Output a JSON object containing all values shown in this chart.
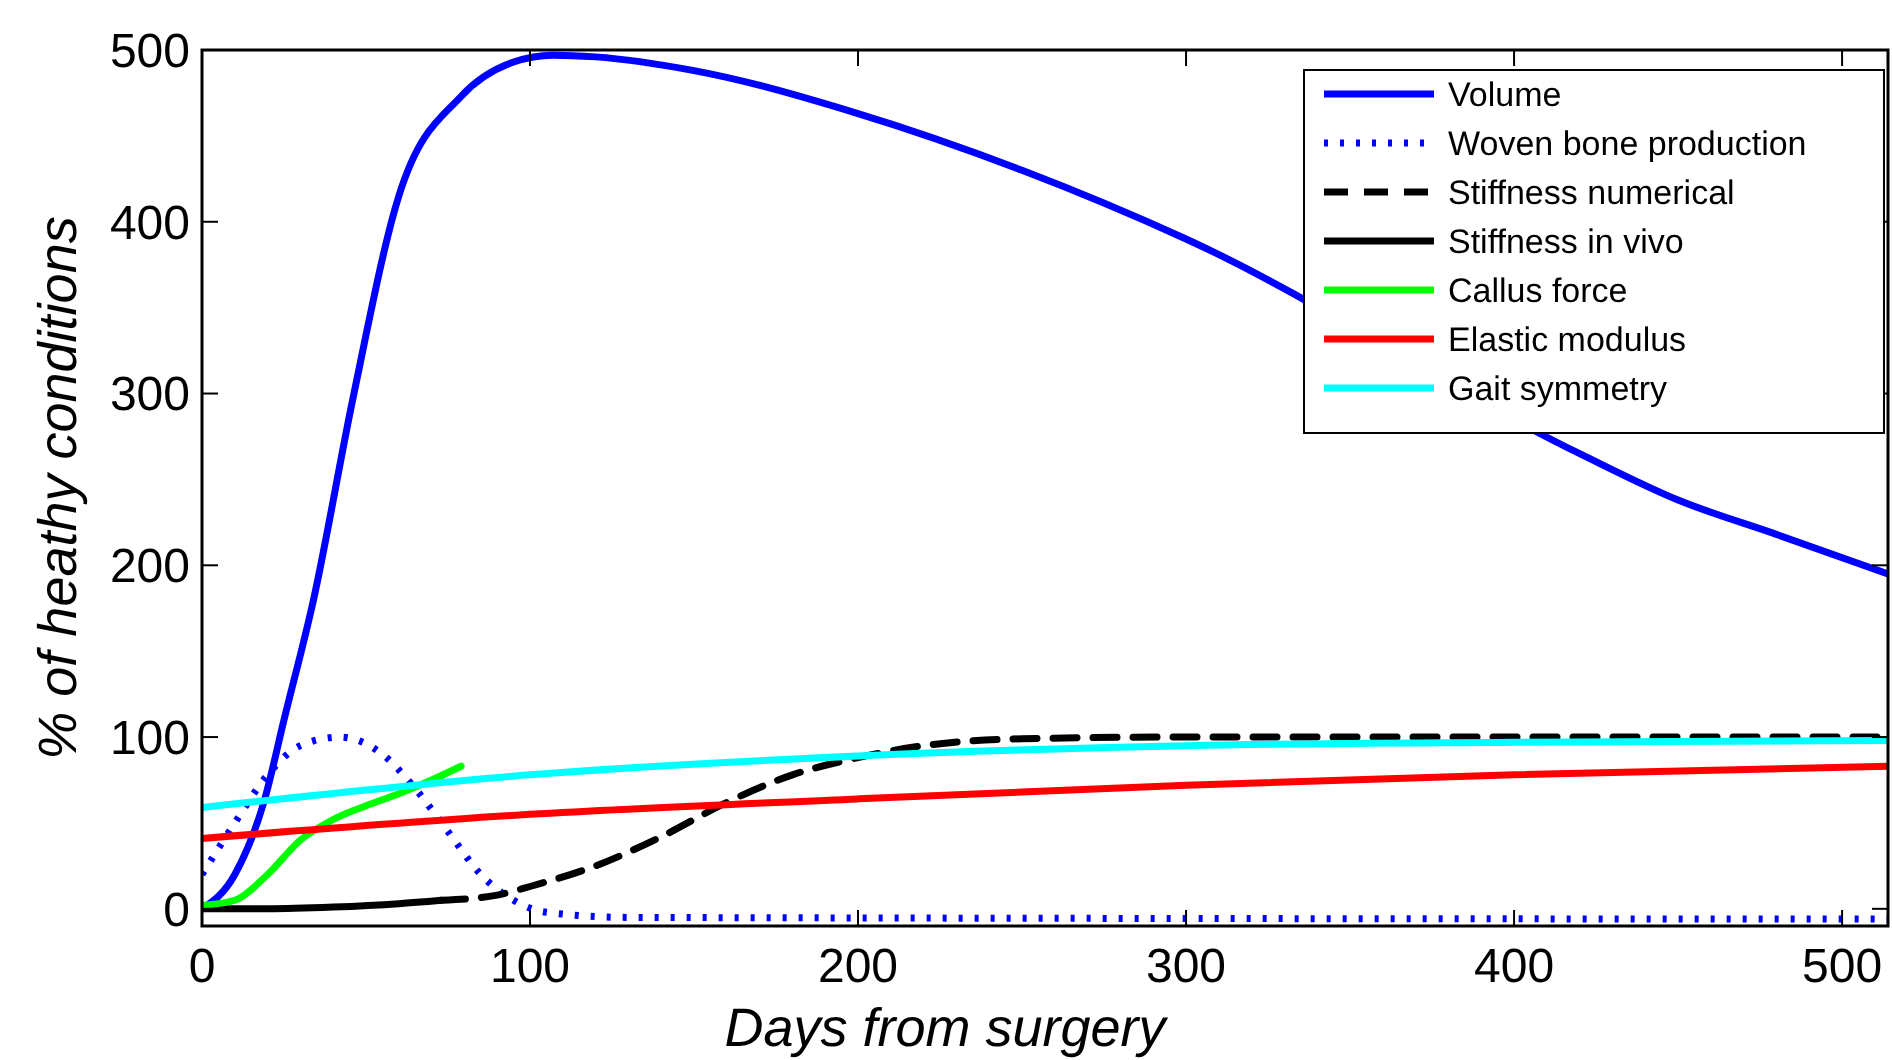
{
  "chart_data": {
    "type": "line",
    "xlabel": "Days from surgery",
    "ylabel": "% of heathy conditions",
    "xlim": [
      0,
      514
    ],
    "ylim": [
      -10,
      500
    ],
    "xticks": [
      0,
      100,
      200,
      300,
      400,
      500
    ],
    "yticks": [
      0,
      100,
      200,
      300,
      400,
      500
    ],
    "grid": false,
    "legend": "top right",
    "series": [
      {
        "name": "Volume",
        "color": "#0000ff",
        "line_style": "solid",
        "x": [
          0,
          10,
          19,
          25,
          34,
          46,
          60,
          79,
          95,
          107,
          120,
          150,
          200,
          250,
          300,
          420,
          450,
          480,
          514
        ],
        "values": [
          0,
          20,
          63,
          110,
          180,
          297,
          415,
          473,
          493,
          497,
          496,
          488,
          463,
          430,
          390,
          265,
          238,
          218,
          195
        ]
      },
      {
        "name": "Woven bone production",
        "color": "#0000ff",
        "line_style": "dotted",
        "x": [
          0,
          10,
          20,
          30,
          42,
          55,
          65,
          75,
          85,
          95,
          105,
          130,
          514
        ],
        "values": [
          20,
          50,
          78,
          95,
          100,
          90,
          70,
          45,
          20,
          5,
          -2,
          -5,
          -6
        ]
      },
      {
        "name": "Stiffness numerical",
        "color": "#000000",
        "line_style": "dashed",
        "x": [
          73,
          90,
          100,
          120,
          140,
          160,
          180,
          200,
          220,
          250,
          300,
          514
        ],
        "values": [
          5,
          8,
          13,
          25,
          42,
          62,
          78,
          88,
          95,
          99,
          100,
          100
        ]
      },
      {
        "name": "Stiffness in vivo",
        "color": "#000000",
        "line_style": "solid",
        "x": [
          0,
          20,
          40,
          60,
          73
        ],
        "values": [
          0,
          0,
          1,
          3,
          5
        ]
      },
      {
        "name": "Callus force",
        "color": "#00ff00",
        "line_style": "solid",
        "x": [
          0,
          10,
          20,
          30,
          40,
          50,
          60,
          70,
          79
        ],
        "values": [
          2,
          5,
          20,
          40,
          52,
          60,
          67,
          75,
          83
        ]
      },
      {
        "name": "Elastic modulus",
        "color": "#ff0000",
        "line_style": "solid",
        "x": [
          0,
          100,
          200,
          300,
          400,
          514
        ],
        "values": [
          41,
          55,
          64,
          72,
          78,
          83
        ]
      },
      {
        "name": "Gait symmetry",
        "color": "#00ffff",
        "line_style": "solid",
        "x": [
          0,
          100,
          200,
          300,
          400,
          514
        ],
        "values": [
          59,
          78,
          89,
          95,
          97,
          98
        ]
      }
    ]
  }
}
